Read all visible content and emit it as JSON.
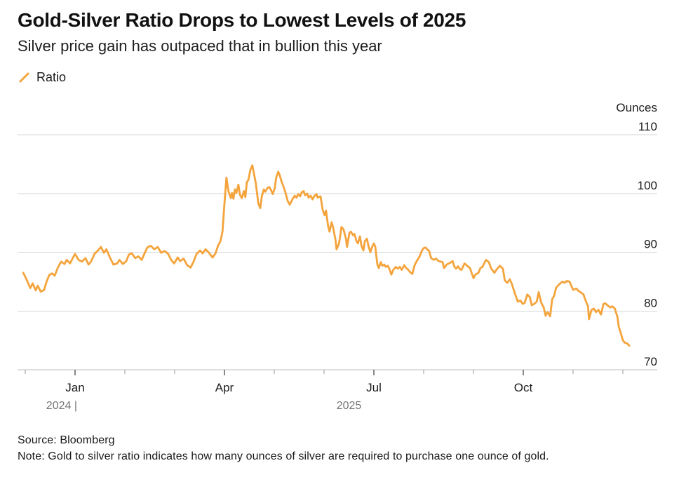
{
  "header": {
    "title": "Gold-Silver Ratio Drops to Lowest Levels of 2025",
    "subtitle": "Silver price gain has outpaced that in bullion this year"
  },
  "legend": {
    "items": [
      {
        "label": "Ratio",
        "marker": "slash-icon",
        "color": "#F4A43C"
      }
    ]
  },
  "chart_data": {
    "type": "line",
    "title": "Gold-Silver Ratio Drops to Lowest Levels of 2025",
    "subtitle": "Silver price gain has outpaced that in bullion this year",
    "unit_label": "Ounces",
    "grid": "horizontal",
    "legend_position": "top-left",
    "y_domain": [
      70,
      110
    ],
    "y_ticks": [
      110,
      100,
      90,
      80,
      70
    ],
    "x_unit": "months (0 = Dec 2024, 1 = Jan 2025 ... 12 = Dec 2025)",
    "x_domain": [
      -0.15,
      12.7
    ],
    "x_ticks": [
      {
        "t": 0,
        "label": "",
        "major": false
      },
      {
        "t": 1,
        "label": "Jan",
        "major": true
      },
      {
        "t": 2,
        "label": "",
        "major": false
      },
      {
        "t": 3,
        "label": "",
        "major": false
      },
      {
        "t": 4,
        "label": "Apr",
        "major": true
      },
      {
        "t": 5,
        "label": "",
        "major": false
      },
      {
        "t": 6,
        "label": "",
        "major": false
      },
      {
        "t": 7,
        "label": "Jul",
        "major": true
      },
      {
        "t": 8,
        "label": "",
        "major": false
      },
      {
        "t": 9,
        "label": "",
        "major": false
      },
      {
        "t": 10,
        "label": "Oct",
        "major": true
      },
      {
        "t": 11,
        "label": "",
        "major": false
      },
      {
        "t": 12,
        "label": "",
        "major": false
      }
    ],
    "year_labels": [
      {
        "label": "2024 |",
        "t": 1.0,
        "anchor": "end"
      },
      {
        "label": "2025",
        "t": 6.5,
        "anchor": "middle"
      }
    ],
    "series": [
      {
        "name": "Ratio",
        "color": "#F4A43C",
        "points": [
          [
            -0.04,
            86.5
          ],
          [
            0.03,
            85.3
          ],
          [
            0.1,
            83.9
          ],
          [
            0.15,
            84.7
          ],
          [
            0.21,
            83.5
          ],
          [
            0.25,
            84.3
          ],
          [
            0.31,
            83.3
          ],
          [
            0.38,
            83.6
          ],
          [
            0.42,
            84.8
          ],
          [
            0.48,
            86.1
          ],
          [
            0.54,
            86.4
          ],
          [
            0.59,
            86.0
          ],
          [
            0.65,
            87.3
          ],
          [
            0.72,
            88.4
          ],
          [
            0.79,
            88.0
          ],
          [
            0.83,
            88.7
          ],
          [
            0.9,
            88.1
          ],
          [
            0.96,
            89.1
          ],
          [
            1.0,
            89.7
          ],
          [
            1.07,
            88.7
          ],
          [
            1.14,
            88.4
          ],
          [
            1.21,
            89.0
          ],
          [
            1.27,
            87.9
          ],
          [
            1.32,
            88.4
          ],
          [
            1.39,
            89.7
          ],
          [
            1.46,
            90.3
          ],
          [
            1.52,
            90.9
          ],
          [
            1.58,
            89.9
          ],
          [
            1.63,
            90.5
          ],
          [
            1.7,
            89.1
          ],
          [
            1.77,
            87.9
          ],
          [
            1.85,
            88.1
          ],
          [
            1.89,
            88.7
          ],
          [
            1.96,
            88.0
          ],
          [
            2.03,
            88.5
          ],
          [
            2.08,
            89.6
          ],
          [
            2.14,
            89.8
          ],
          [
            2.21,
            89.0
          ],
          [
            2.27,
            89.3
          ],
          [
            2.34,
            88.7
          ],
          [
            2.39,
            89.7
          ],
          [
            2.45,
            90.8
          ],
          [
            2.52,
            91.1
          ],
          [
            2.59,
            90.5
          ],
          [
            2.66,
            90.9
          ],
          [
            2.73,
            89.9
          ],
          [
            2.8,
            90.2
          ],
          [
            2.87,
            89.7
          ],
          [
            2.93,
            88.7
          ],
          [
            2.99,
            88.1
          ],
          [
            3.06,
            89.1
          ],
          [
            3.11,
            88.5
          ],
          [
            3.18,
            88.9
          ],
          [
            3.25,
            87.8
          ],
          [
            3.32,
            87.4
          ],
          [
            3.38,
            88.4
          ],
          [
            3.44,
            89.7
          ],
          [
            3.51,
            90.3
          ],
          [
            3.56,
            89.8
          ],
          [
            3.62,
            90.5
          ],
          [
            3.69,
            89.9
          ],
          [
            3.76,
            89.1
          ],
          [
            3.82,
            89.8
          ],
          [
            3.87,
            91.1
          ],
          [
            3.92,
            91.9
          ],
          [
            3.96,
            93.5
          ],
          [
            4.0,
            98.3
          ],
          [
            4.04,
            102.7
          ],
          [
            4.08,
            100.4
          ],
          [
            4.13,
            99.2
          ],
          [
            4.15,
            100.1
          ],
          [
            4.18,
            99.1
          ],
          [
            4.21,
            100.7
          ],
          [
            4.24,
            100.1
          ],
          [
            4.28,
            101.5
          ],
          [
            4.31,
            99.8
          ],
          [
            4.35,
            99.2
          ],
          [
            4.39,
            100.4
          ],
          [
            4.42,
            99.4
          ],
          [
            4.45,
            101.9
          ],
          [
            4.48,
            102.3
          ],
          [
            4.52,
            104.0
          ],
          [
            4.56,
            104.8
          ],
          [
            4.59,
            103.5
          ],
          [
            4.63,
            101.7
          ],
          [
            4.68,
            98.3
          ],
          [
            4.72,
            97.5
          ],
          [
            4.75,
            99.5
          ],
          [
            4.79,
            100.7
          ],
          [
            4.82,
            100.3
          ],
          [
            4.86,
            100.9
          ],
          [
            4.9,
            101.1
          ],
          [
            4.94,
            100.5
          ],
          [
            4.97,
            99.9
          ],
          [
            5.01,
            100.9
          ],
          [
            5.04,
            102.7
          ],
          [
            5.08,
            103.7
          ],
          [
            5.11,
            103.1
          ],
          [
            5.15,
            101.9
          ],
          [
            5.18,
            101.3
          ],
          [
            5.22,
            100.3
          ],
          [
            5.27,
            98.7
          ],
          [
            5.31,
            98.1
          ],
          [
            5.37,
            99.1
          ],
          [
            5.41,
            99.6
          ],
          [
            5.45,
            99.3
          ],
          [
            5.48,
            99.9
          ],
          [
            5.52,
            99.5
          ],
          [
            5.55,
            100.2
          ],
          [
            5.59,
            100.4
          ],
          [
            5.62,
            99.7
          ],
          [
            5.66,
            100.0
          ],
          [
            5.69,
            99.3
          ],
          [
            5.73,
            99.6
          ],
          [
            5.77,
            99.0
          ],
          [
            5.8,
            99.5
          ],
          [
            5.85,
            99.9
          ],
          [
            5.87,
            99.3
          ],
          [
            5.93,
            99.5
          ],
          [
            5.97,
            97.3
          ],
          [
            6.01,
            96.3
          ],
          [
            6.04,
            97.1
          ],
          [
            6.08,
            94.5
          ],
          [
            6.11,
            93.5
          ],
          [
            6.15,
            95.1
          ],
          [
            6.18,
            94.3
          ],
          [
            6.23,
            92.1
          ],
          [
            6.25,
            90.5
          ],
          [
            6.3,
            91.5
          ],
          [
            6.32,
            92.5
          ],
          [
            6.35,
            94.3
          ],
          [
            6.39,
            93.9
          ],
          [
            6.44,
            92.3
          ],
          [
            6.46,
            90.9
          ],
          [
            6.51,
            93.3
          ],
          [
            6.54,
            93.5
          ],
          [
            6.58,
            92.9
          ],
          [
            6.61,
            93.1
          ],
          [
            6.65,
            91.9
          ],
          [
            6.68,
            91.5
          ],
          [
            6.72,
            92.7
          ],
          [
            6.75,
            91.1
          ],
          [
            6.79,
            90.3
          ],
          [
            6.82,
            91.9
          ],
          [
            6.86,
            92.3
          ],
          [
            6.89,
            91.1
          ],
          [
            6.93,
            90.0
          ],
          [
            6.96,
            90.8
          ],
          [
            7.0,
            91.5
          ],
          [
            7.03,
            90.9
          ],
          [
            7.07,
            87.9
          ],
          [
            7.1,
            87.3
          ],
          [
            7.14,
            88.3
          ],
          [
            7.17,
            87.7
          ],
          [
            7.21,
            87.9
          ],
          [
            7.24,
            87.5
          ],
          [
            7.28,
            87.7
          ],
          [
            7.31,
            87.2
          ],
          [
            7.35,
            86.2
          ],
          [
            7.39,
            87.0
          ],
          [
            7.44,
            87.5
          ],
          [
            7.48,
            87.2
          ],
          [
            7.52,
            87.5
          ],
          [
            7.56,
            87.0
          ],
          [
            7.61,
            87.8
          ],
          [
            7.65,
            87.3
          ],
          [
            7.69,
            87.0
          ],
          [
            7.73,
            86.6
          ],
          [
            7.77,
            86.3
          ],
          [
            7.82,
            87.8
          ],
          [
            7.86,
            88.5
          ],
          [
            7.92,
            89.3
          ],
          [
            7.96,
            90.2
          ],
          [
            8.0,
            90.7
          ],
          [
            8.04,
            90.8
          ],
          [
            8.08,
            90.4
          ],
          [
            8.11,
            90.2
          ],
          [
            8.15,
            89.0
          ],
          [
            8.2,
            88.7
          ],
          [
            8.25,
            88.9
          ],
          [
            8.3,
            88.5
          ],
          [
            8.34,
            88.4
          ],
          [
            8.38,
            88.3
          ],
          [
            8.41,
            87.3
          ],
          [
            8.46,
            87.9
          ],
          [
            8.51,
            88.1
          ],
          [
            8.55,
            88.3
          ],
          [
            8.58,
            88.5
          ],
          [
            8.62,
            87.5
          ],
          [
            8.65,
            87.2
          ],
          [
            8.69,
            87.6
          ],
          [
            8.73,
            87.1
          ],
          [
            8.76,
            87.0
          ],
          [
            8.82,
            88.1
          ],
          [
            8.86,
            87.8
          ],
          [
            8.9,
            87.5
          ],
          [
            8.93,
            87.3
          ],
          [
            9.0,
            85.6
          ],
          [
            9.04,
            86.2
          ],
          [
            9.1,
            86.5
          ],
          [
            9.14,
            87.3
          ],
          [
            9.18,
            87.5
          ],
          [
            9.25,
            88.7
          ],
          [
            9.31,
            88.3
          ],
          [
            9.35,
            87.3
          ],
          [
            9.42,
            86.5
          ],
          [
            9.46,
            87.0
          ],
          [
            9.53,
            87.7
          ],
          [
            9.59,
            87.2
          ],
          [
            9.63,
            85.2
          ],
          [
            9.68,
            84.8
          ],
          [
            9.73,
            85.4
          ],
          [
            9.77,
            84.6
          ],
          [
            9.84,
            82.8
          ],
          [
            9.89,
            81.6
          ],
          [
            9.94,
            81.8
          ],
          [
            9.99,
            81.2
          ],
          [
            10.03,
            81.4
          ],
          [
            10.08,
            82.8
          ],
          [
            10.13,
            82.4
          ],
          [
            10.17,
            81.0
          ],
          [
            10.22,
            81.2
          ],
          [
            10.27,
            81.6
          ],
          [
            10.31,
            83.2
          ],
          [
            10.36,
            81.4
          ],
          [
            10.41,
            80.6
          ],
          [
            10.45,
            79.2
          ],
          [
            10.49,
            79.8
          ],
          [
            10.54,
            79.1
          ],
          [
            10.58,
            82.0
          ],
          [
            10.62,
            82.6
          ],
          [
            10.66,
            84.0
          ],
          [
            10.73,
            84.6
          ],
          [
            10.79,
            85.0
          ],
          [
            10.83,
            84.8
          ],
          [
            10.87,
            85.1
          ],
          [
            10.93,
            85.0
          ],
          [
            11.0,
            83.6
          ],
          [
            11.07,
            83.8
          ],
          [
            11.11,
            83.4
          ],
          [
            11.15,
            83.2
          ],
          [
            11.21,
            82.8
          ],
          [
            11.25,
            81.8
          ],
          [
            11.3,
            80.8
          ],
          [
            11.32,
            78.6
          ],
          [
            11.37,
            80.2
          ],
          [
            11.42,
            80.4
          ],
          [
            11.46,
            79.8
          ],
          [
            11.51,
            80.2
          ],
          [
            11.56,
            79.4
          ],
          [
            11.61,
            81.2
          ],
          [
            11.65,
            81.3
          ],
          [
            11.7,
            80.9
          ],
          [
            11.75,
            80.6
          ],
          [
            11.79,
            80.8
          ],
          [
            11.84,
            80.4
          ],
          [
            11.89,
            79.0
          ],
          [
            11.92,
            77.2
          ],
          [
            11.94,
            76.8
          ],
          [
            11.97,
            75.9
          ],
          [
            12.0,
            75.0
          ],
          [
            12.04,
            74.6
          ],
          [
            12.08,
            74.5
          ],
          [
            12.13,
            74.1
          ]
        ]
      }
    ]
  },
  "footer": {
    "source": "Source: Bloomberg",
    "note": "Note: Gold to silver ratio indicates how many ounces of silver are required to purchase one ounce of gold."
  },
  "colors": {
    "accent": "#F4A43C",
    "grid": "#d6d6d6",
    "axis": "#bdbdbd",
    "major_tick": "#3a3a3a",
    "minor_tick": "#a8a8a8",
    "text": "#1c1c1c",
    "muted": "#757575"
  }
}
